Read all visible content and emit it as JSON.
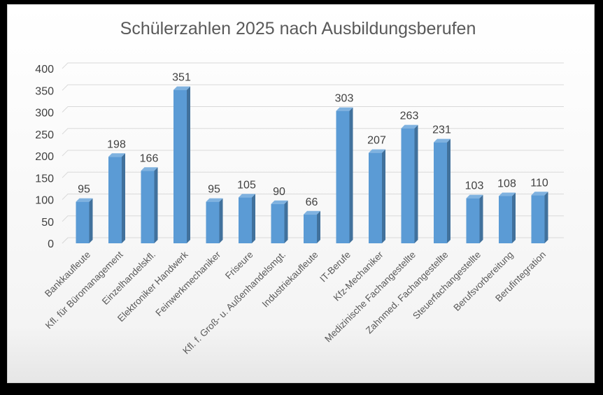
{
  "chart_data": {
    "type": "bar",
    "title": "Schülerzahlen 2025 nach Ausbildungsberufen",
    "xlabel": "",
    "ylabel": "",
    "ylim": [
      0,
      400
    ],
    "yticks": [
      0,
      50,
      100,
      150,
      200,
      250,
      300,
      350,
      400
    ],
    "grid": true,
    "categories": [
      "Bankkaufleute",
      "Kfl. für Büromanagement",
      "Einzelhandelskfl.",
      "Elektroniker Handwerk",
      "Feinwerkmechaniker",
      "Friseure",
      "Kfl. f. Groß- u. Außenhandelsmgt.",
      "Industriekaufleute",
      "IT-Berufe",
      "Kfz-Mechaniker",
      "Medizinische Fachangestellte",
      "Zahnmed. Fachangestellte",
      "Steuerfachangestellte",
      "Berufsvorbereitung",
      "Berufintegration"
    ],
    "values": [
      95,
      198,
      166,
      351,
      95,
      105,
      90,
      66,
      303,
      207,
      263,
      231,
      103,
      108,
      110
    ],
    "colors": {
      "bar_front": "#5b9bd5",
      "bar_side": "#41719c",
      "bar_top": "#7fb2e0",
      "grid": "#d9d9d9"
    }
  }
}
